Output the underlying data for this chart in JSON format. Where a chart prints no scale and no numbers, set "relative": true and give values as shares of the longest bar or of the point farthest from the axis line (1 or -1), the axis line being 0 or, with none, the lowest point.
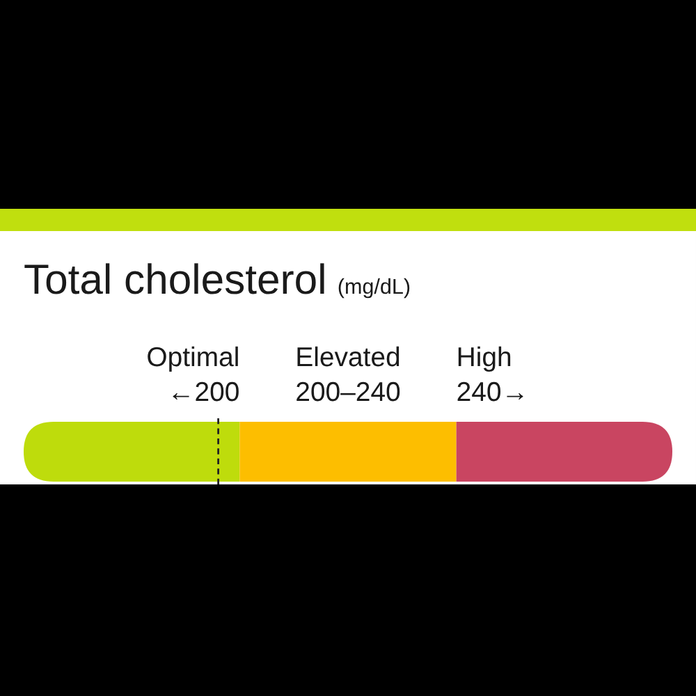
{
  "chart_data": {
    "type": "bar",
    "orientation": "horizontal",
    "stacked": true,
    "relative": true,
    "title": "Total cholesterol",
    "subtitle": "(mg/dL)",
    "categories": [
      null
    ],
    "series": [
      {
        "name": "Optimal",
        "color": "#bedc0c",
        "values": [
          0.333
        ]
      },
      {
        "name": "Elevated",
        "color": "#fdbe00",
        "values": [
          0.334
        ]
      },
      {
        "name": "High",
        "color": "#c94561",
        "values": [
          0.333
        ]
      }
    ],
    "annotations": [
      "←200",
      "200–240",
      "240→"
    ],
    "ref_lines": [
      {
        "axis": "x",
        "value": 0.3,
        "color": "#222222",
        "line_style": "dashed"
      }
    ]
  }
}
